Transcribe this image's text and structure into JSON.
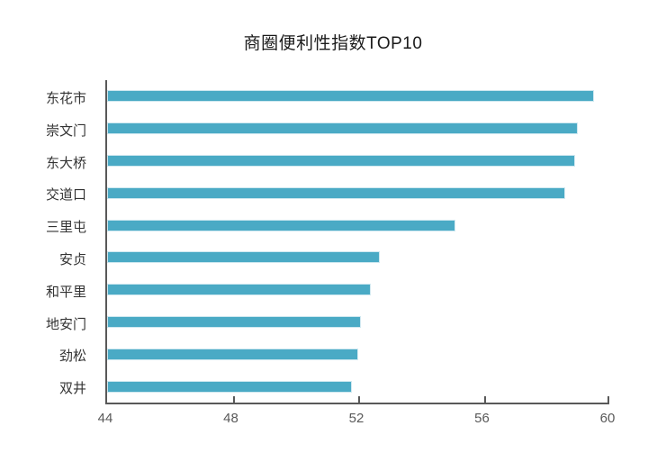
{
  "chart_data": {
    "type": "bar",
    "orientation": "horizontal",
    "title": "商圈便利性指数TOP10",
    "categories": [
      "东花市",
      "崇文门",
      "东大桥",
      "交道口",
      "三里屯",
      "安贞",
      "和平里",
      "地安门",
      "劲松",
      "双井"
    ],
    "values": [
      59.5,
      59.0,
      58.9,
      58.6,
      55.1,
      52.7,
      52.4,
      52.1,
      52.0,
      51.8
    ],
    "xlabel": "",
    "ylabel": "",
    "xlim": [
      44,
      60
    ],
    "xticks": [
      44,
      48,
      52,
      56,
      60
    ],
    "grid": false,
    "legend": null,
    "colors": {
      "bar_fill": "#4aaac5",
      "bar_border": "#cfe8f0",
      "axis": "#595959",
      "tick_label": "#595959",
      "category_label": "#333333",
      "title": "#1a1a1a",
      "background": "#ffffff"
    }
  }
}
